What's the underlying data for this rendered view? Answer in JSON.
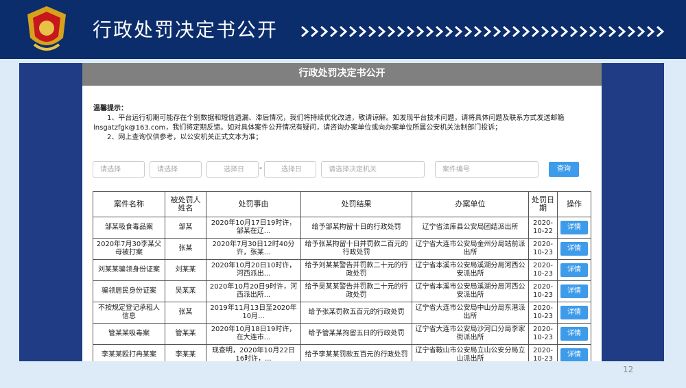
{
  "header": {
    "title": "行政处罚决定书公开"
  },
  "panel": {
    "title": "行政处罚决定书公开"
  },
  "notice": {
    "heading": "温馨提示：",
    "lines": [
      "1、平台运行初期可能存在个别数据和短信遗漏、滞后情况，我们将持续优化改进，敬请谅解。如发现平台技术问题，请将具体问题及联系方式发送邮箱lnsgatzfgk@163.com，我们将定期反馈。如对具体案件公开情况有疑问，请咨询办案单位或向办案单位所属公安机关法制部门投诉；",
      "2、网上查询仅供参考，以公安机关正式文本为准；"
    ]
  },
  "filters": {
    "select1": "请选择",
    "select2": "请选择",
    "date_start": "选择日",
    "separator": "-",
    "date_end": "选择日",
    "agency": "请选择决定机关",
    "case_no": "案件编号",
    "button": "查询"
  },
  "table": {
    "columns": [
      "案件名称",
      "被处罚人姓名",
      "处罚事由",
      "处罚结果",
      "办案单位",
      "处罚日期",
      "操作"
    ],
    "rows": [
      [
        "邹某吸食毒品案",
        "邹某",
        "2020年10月17日19时许，邹某在辽...",
        "给予邹某拘留十日的行政处罚",
        "辽宁省法库县公安局团结派出所",
        "2020-10-22",
        "详情"
      ],
      [
        "2020年7月30李某父母被打案",
        "张某",
        "2020年7月30日12时40分许，张某...",
        "给予张某拘留十日并罚款二百元的行政处罚",
        "辽宁省大连市公安局金州分局站前派出所",
        "2020-10-23",
        "详情"
      ],
      [
        "刘某某骗领身份证案",
        "刘某某",
        "2020年10月20日10时许，河西派出...",
        "给予刘某某警告并罚款二十元的行政处罚",
        "辽宁省本溪市公安局溪湖分局河西公安派出所",
        "2020-10-23",
        "详情"
      ],
      [
        "骗领居民身份证案",
        "吴某某",
        "2020年10月20日9时许，河西派出所...",
        "给予吴某某警告并罚款二十元的行政处罚",
        "辽宁省本溪市公安局溪湖分局河西公安派出所",
        "2020-10-23",
        "详情"
      ],
      [
        "不按规定登记承租人信息",
        "张某",
        "2019年11月13日至2020年10月...",
        "给予张某罚款五百元的行政处罚",
        "辽宁省大连市公安局中山分局东港派出所",
        "2020-10-23",
        "详情"
      ],
      [
        "管某某吸毒案",
        "管某某",
        "2020年10月18日19时许，在大连市...",
        "给予管某某拘留五日的行政处罚",
        "辽宁省大连市公安局沙河口分局李家街派出所",
        "2020-10-23",
        "详情"
      ],
      [
        "李某某殴打冉某案",
        "李某某",
        "现查明，2020年10月22日16时许，...",
        "给予李某某罚款五百元的行政处罚",
        "辽宁省鞍山市公安局立山公安分局立山派出所",
        "2020-10-23",
        "详情"
      ]
    ]
  },
  "page_number": "12"
}
